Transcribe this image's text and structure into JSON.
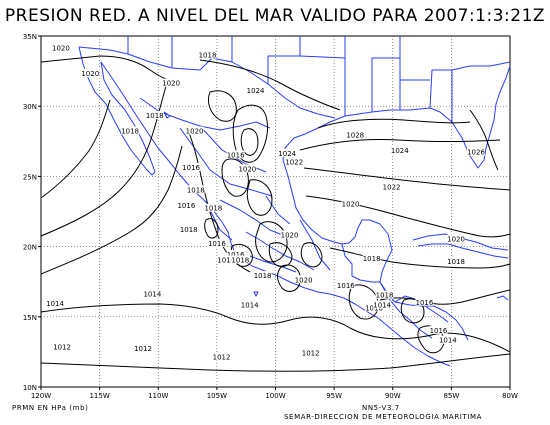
{
  "title": "PRESION RED. A NIVEL DEL MAR VALIDO PARA 2007:1:3:21Z",
  "units_label": "PRMN EN HPa (mb)",
  "version": "NN5-V3.7",
  "organization": "SEMAR-DIRECCION DE METEOROLOGIA MARITIMA",
  "colors": {
    "coast": "#2a3cff",
    "contour": "#000000",
    "grid": "#555555"
  },
  "map": {
    "lon_range": [
      -120,
      -80
    ],
    "lat_range": [
      10,
      35
    ],
    "lon_ticks": [
      {
        "value": -120,
        "label": "120W"
      },
      {
        "value": -115,
        "label": "115W"
      },
      {
        "value": -110,
        "label": "110W"
      },
      {
        "value": -105,
        "label": "105W"
      },
      {
        "value": -100,
        "label": "100W"
      },
      {
        "value": -95,
        "label": "95W"
      },
      {
        "value": -90,
        "label": "90W"
      },
      {
        "value": -85,
        "label": "85W"
      },
      {
        "value": -80,
        "label": "80W"
      }
    ],
    "lat_ticks": [
      {
        "value": 10,
        "label": "10N"
      },
      {
        "value": 15,
        "label": "15N"
      },
      {
        "value": 20,
        "label": "20N"
      },
      {
        "value": 25,
        "label": "25N"
      },
      {
        "value": 30,
        "label": "30N"
      },
      {
        "value": 35,
        "label": "35N"
      }
    ],
    "contour_labels": [
      {
        "text": "1020",
        "lon": -118.3,
        "lat": 34.1
      },
      {
        "text": "1020",
        "lon": -115.8,
        "lat": 32.3
      },
      {
        "text": "1018",
        "lon": -105.8,
        "lat": 33.6
      },
      {
        "text": "1020",
        "lon": -108.9,
        "lat": 31.6
      },
      {
        "text": "1024",
        "lon": -101.7,
        "lat": 31.1
      },
      {
        "text": "1018",
        "lon": -110.3,
        "lat": 29.3
      },
      {
        "text": "1018",
        "lon": -112.4,
        "lat": 28.2
      },
      {
        "text": "1020",
        "lon": -106.9,
        "lat": 28.2
      },
      {
        "text": "1028",
        "lon": -93.2,
        "lat": 27.9
      },
      {
        "text": "1016",
        "lon": -107.2,
        "lat": 25.6
      },
      {
        "text": "1016",
        "lon": -103.4,
        "lat": 26.5
      },
      {
        "text": "1020",
        "lon": -102.4,
        "lat": 25.5
      },
      {
        "text": "1024",
        "lon": -99.0,
        "lat": 26.6
      },
      {
        "text": "1022",
        "lon": -98.4,
        "lat": 26.0
      },
      {
        "text": "1024",
        "lon": -89.4,
        "lat": 26.8
      },
      {
        "text": "1026",
        "lon": -82.9,
        "lat": 26.7
      },
      {
        "text": "1018",
        "lon": -106.8,
        "lat": 24.0
      },
      {
        "text": "1022",
        "lon": -90.1,
        "lat": 24.2
      },
      {
        "text": "1016",
        "lon": -107.6,
        "lat": 22.9
      },
      {
        "text": "1018",
        "lon": -105.3,
        "lat": 22.7
      },
      {
        "text": "1020",
        "lon": -93.6,
        "lat": 23.0
      },
      {
        "text": "1018",
        "lon": -107.4,
        "lat": 21.2
      },
      {
        "text": "1020",
        "lon": -98.8,
        "lat": 20.8
      },
      {
        "text": "1016",
        "lon": -105.0,
        "lat": 20.2
      },
      {
        "text": "1020",
        "lon": -84.6,
        "lat": 20.5
      },
      {
        "text": "1016",
        "lon": -103.4,
        "lat": 19.4
      },
      {
        "text": "1016",
        "lon": -104.2,
        "lat": 19.0
      },
      {
        "text": "1018",
        "lon": -103.0,
        "lat": 19.0
      },
      {
        "text": "1018",
        "lon": -91.8,
        "lat": 19.1
      },
      {
        "text": "1018",
        "lon": -84.6,
        "lat": 18.9
      },
      {
        "text": "1018",
        "lon": -101.1,
        "lat": 17.9
      },
      {
        "text": "1020",
        "lon": -97.6,
        "lat": 17.6
      },
      {
        "text": "1014",
        "lon": -110.5,
        "lat": 16.6
      },
      {
        "text": "1014",
        "lon": -102.2,
        "lat": 15.8
      },
      {
        "text": "1014",
        "lon": -118.8,
        "lat": 15.9
      },
      {
        "text": "1016",
        "lon": -94.0,
        "lat": 17.2
      },
      {
        "text": "1018",
        "lon": -90.7,
        "lat": 16.5
      },
      {
        "text": "1016",
        "lon": -87.3,
        "lat": 16.0
      },
      {
        "text": "1018",
        "lon": -91.6,
        "lat": 15.6
      },
      {
        "text": "1014",
        "lon": -90.9,
        "lat": 15.8
      },
      {
        "text": "1016",
        "lon": -86.1,
        "lat": 14.0
      },
      {
        "text": "1014",
        "lon": -85.3,
        "lat": 13.3
      },
      {
        "text": "1012",
        "lon": -118.2,
        "lat": 12.8
      },
      {
        "text": "1012",
        "lon": -111.3,
        "lat": 12.7
      },
      {
        "text": "1012",
        "lon": -104.6,
        "lat": 12.1
      },
      {
        "text": "1012",
        "lon": -97.0,
        "lat": 12.4
      }
    ]
  }
}
